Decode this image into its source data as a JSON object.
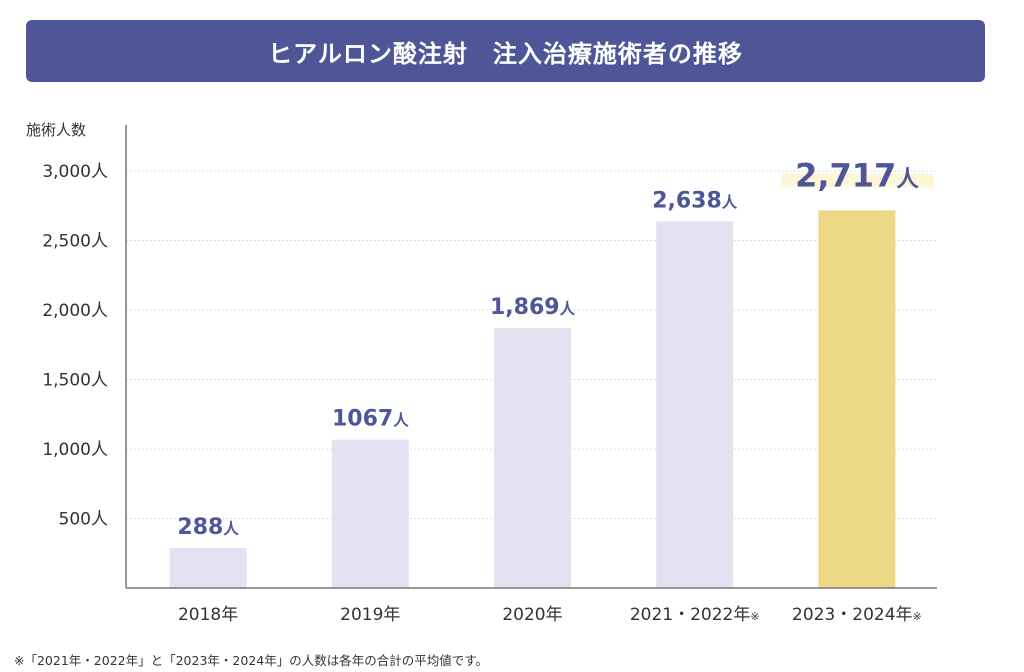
{
  "title": "ヒアルロン酸注射　注入治療施術者の推移",
  "chart_data": {
    "type": "bar",
    "title": "ヒアルロン酸注射　注入治療施術者の推移",
    "ylabel": "施術人数",
    "xlabel": "",
    "ylim": [
      0,
      3000
    ],
    "yticks": [
      500,
      1000,
      1500,
      2000,
      2500,
      3000
    ],
    "ytick_labels": [
      "500人",
      "1,000人",
      "1,500人",
      "2,000人",
      "2,500人",
      "3,000人"
    ],
    "grid": true,
    "categories": [
      "2018年",
      "2019年",
      "2020年",
      "2021・2022年",
      "2023・2024年"
    ],
    "category_marks": [
      "",
      "",
      "",
      "※",
      "※"
    ],
    "values": [
      288,
      1067,
      1869,
      2638,
      2717
    ],
    "data_labels": [
      "288",
      "1067",
      "1,869",
      "2,638",
      "2,717"
    ],
    "unit": "人",
    "highlight_index": 4,
    "colors": {
      "bar": "#e2e2f2",
      "highlight_bar": "#ecd885",
      "highlight_label_bg": "#fdf6d8",
      "label": "#4e5698",
      "axis": "#777777",
      "grid": "#dddddd"
    }
  },
  "footnote": "※「2021年・2022年」と「2023年・2024年」の人数は各年の合計の平均値です。"
}
